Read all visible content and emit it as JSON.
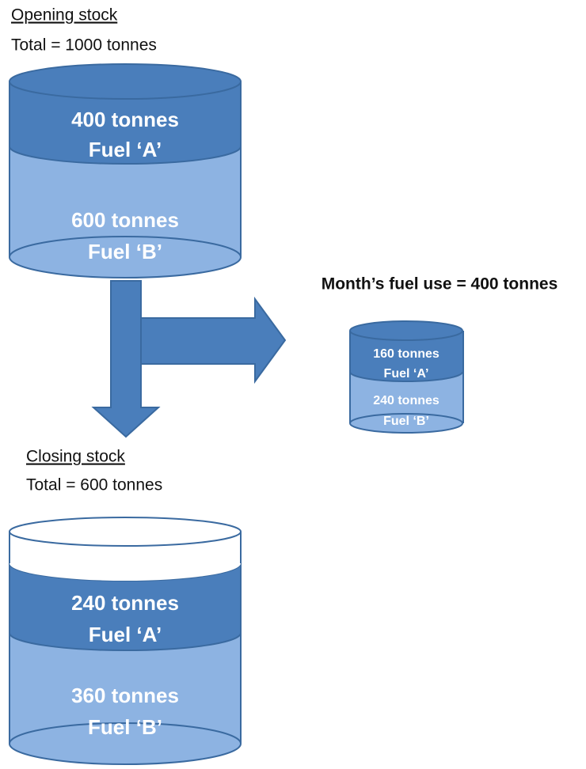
{
  "opening": {
    "title": "Opening stock",
    "total": "Total = 1000 tonnes",
    "fuel_a": {
      "amount": "400 tonnes",
      "label": "Fuel ‘A’"
    },
    "fuel_b": {
      "amount": "600 tonnes",
      "label": "Fuel ‘B’"
    }
  },
  "usage": {
    "title": "Month’s fuel use = 400 tonnes",
    "fuel_a": {
      "amount": "160 tonnes",
      "label": "Fuel ‘A’"
    },
    "fuel_b": {
      "amount": "240 tonnes",
      "label": "Fuel ‘B’"
    }
  },
  "closing": {
    "title": "Closing stock",
    "total": "Total = 600 tonnes",
    "fuel_a": {
      "amount": "240 tonnes",
      "label": "Fuel ‘A’"
    },
    "fuel_b": {
      "amount": "360 tonnes",
      "label": "Fuel ‘B’"
    }
  }
}
